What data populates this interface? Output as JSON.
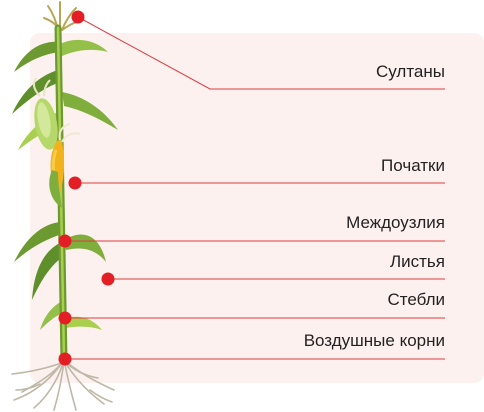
{
  "colors": {
    "panel": "#fdf1ef",
    "leader": "#e03a3e",
    "marker": "#e31e24",
    "leaf_dark": "#5f8f2a",
    "leaf_light": "#a9cf4f",
    "kernel": "#f2b21b",
    "root": "#bfb8a6"
  },
  "parts": [
    {
      "id": "tassels",
      "label": "Султаны"
    },
    {
      "id": "ears",
      "label": "Початки"
    },
    {
      "id": "internodes",
      "label": "Междоузлия"
    },
    {
      "id": "leaves",
      "label": "Листья"
    },
    {
      "id": "stems",
      "label": "Стебли"
    },
    {
      "id": "aerial-roots",
      "label": "Воздушные корни"
    }
  ]
}
